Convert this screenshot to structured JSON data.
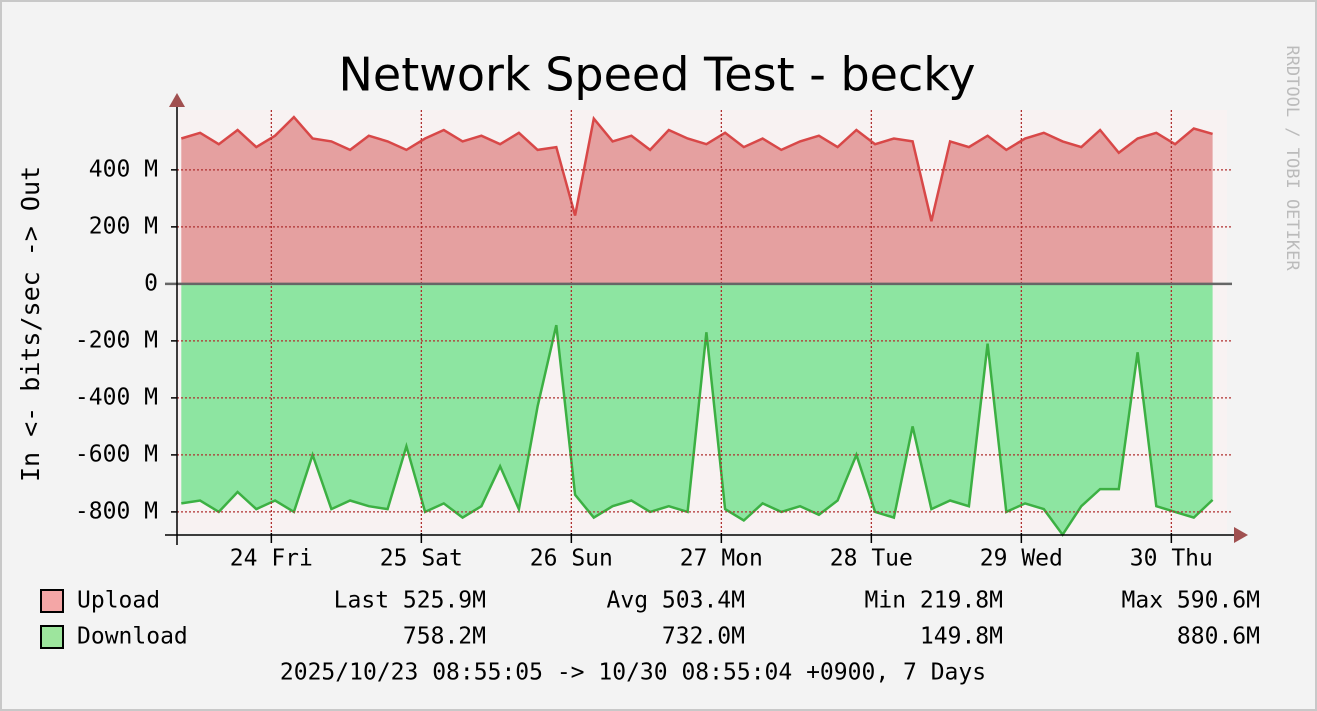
{
  "chart_data": {
    "type": "area",
    "title": "Network Speed Test - becky",
    "y_label": "In <-  bits/sec -> Out",
    "watermark": "RRDTOOL / TOBI OETIKER",
    "footer": "2025/10/23 08:55:05 -> 10/30 08:55:04 +0900, 7 Days",
    "x": [
      23.4,
      23.525,
      23.65,
      23.775,
      23.9,
      24.025,
      24.15,
      24.275,
      24.4,
      24.525,
      24.65,
      24.775,
      24.9,
      25.025,
      25.15,
      25.275,
      25.4,
      25.525,
      25.65,
      25.775,
      25.9,
      26.025,
      26.15,
      26.275,
      26.4,
      26.525,
      26.65,
      26.775,
      26.9,
      27.025,
      27.15,
      27.275,
      27.4,
      27.525,
      27.65,
      27.775,
      27.9,
      28.025,
      28.15,
      28.275,
      28.4,
      28.525,
      28.65,
      28.775,
      28.9,
      29.025,
      29.15,
      29.275,
      29.4,
      29.525,
      29.65,
      29.775,
      29.9,
      30.025,
      30.15,
      30.275
    ],
    "series": [
      {
        "name": "Upload",
        "color": "#e5a0a0",
        "line_color": "#d84848",
        "legend_color": "#f4a6a6",
        "stats": [
          "Last 525.9M",
          "Avg 503.4M",
          "Min 219.8M",
          "Max 590.6M"
        ],
        "values": [
          510,
          530,
          490,
          540,
          480,
          520,
          585,
          510,
          500,
          470,
          520,
          500,
          470,
          510,
          540,
          500,
          520,
          490,
          530,
          470,
          480,
          240,
          580,
          500,
          520,
          470,
          540,
          510,
          490,
          530,
          480,
          510,
          470,
          500,
          520,
          480,
          540,
          490,
          510,
          500,
          220,
          500,
          480,
          520,
          470,
          510,
          530,
          500,
          480,
          540,
          460,
          510,
          530,
          490,
          545,
          526
        ]
      },
      {
        "name": "Download",
        "color": "#8de5a1",
        "line_color": "#3cb043",
        "legend_color": "#9de59d",
        "stats": [
          "758.2M",
          "732.0M",
          "149.8M",
          "880.6M"
        ],
        "values": [
          -770,
          -760,
          -800,
          -730,
          -790,
          -760,
          -800,
          -600,
          -790,
          -760,
          -780,
          -790,
          -570,
          -800,
          -770,
          -820,
          -780,
          -640,
          -790,
          -430,
          -145,
          -740,
          -820,
          -780,
          -760,
          -800,
          -780,
          -800,
          -170,
          -790,
          -830,
          -770,
          -800,
          -780,
          -810,
          -760,
          -600,
          -800,
          -820,
          -500,
          -790,
          -760,
          -780,
          -210,
          -800,
          -770,
          -790,
          -880,
          -780,
          -720,
          -720,
          -240,
          -780,
          -800,
          -820,
          -758
        ]
      }
    ],
    "xlim": [
      23.371,
      30.371
    ],
    "xticks": [
      {
        "value": 24,
        "label": "24 Fri"
      },
      {
        "value": 25,
        "label": "25 Sat"
      },
      {
        "value": 26,
        "label": "26 Sun"
      },
      {
        "value": 27,
        "label": "27 Mon"
      },
      {
        "value": 28,
        "label": "28 Tue"
      },
      {
        "value": 29,
        "label": "29 Wed"
      },
      {
        "value": 30,
        "label": "30 Thu"
      }
    ],
    "ylim": [
      -874,
      610
    ],
    "yticks": [
      {
        "value": -800,
        "label": "-800 M"
      },
      {
        "value": -600,
        "label": "-600 M"
      },
      {
        "value": -400,
        "label": "-400 M"
      },
      {
        "value": -200,
        "label": "-200 M"
      },
      0,
      {
        "value": 200,
        "label": "200 M"
      },
      {
        "value": 400,
        "label": "400 M"
      }
    ],
    "grid": true
  }
}
